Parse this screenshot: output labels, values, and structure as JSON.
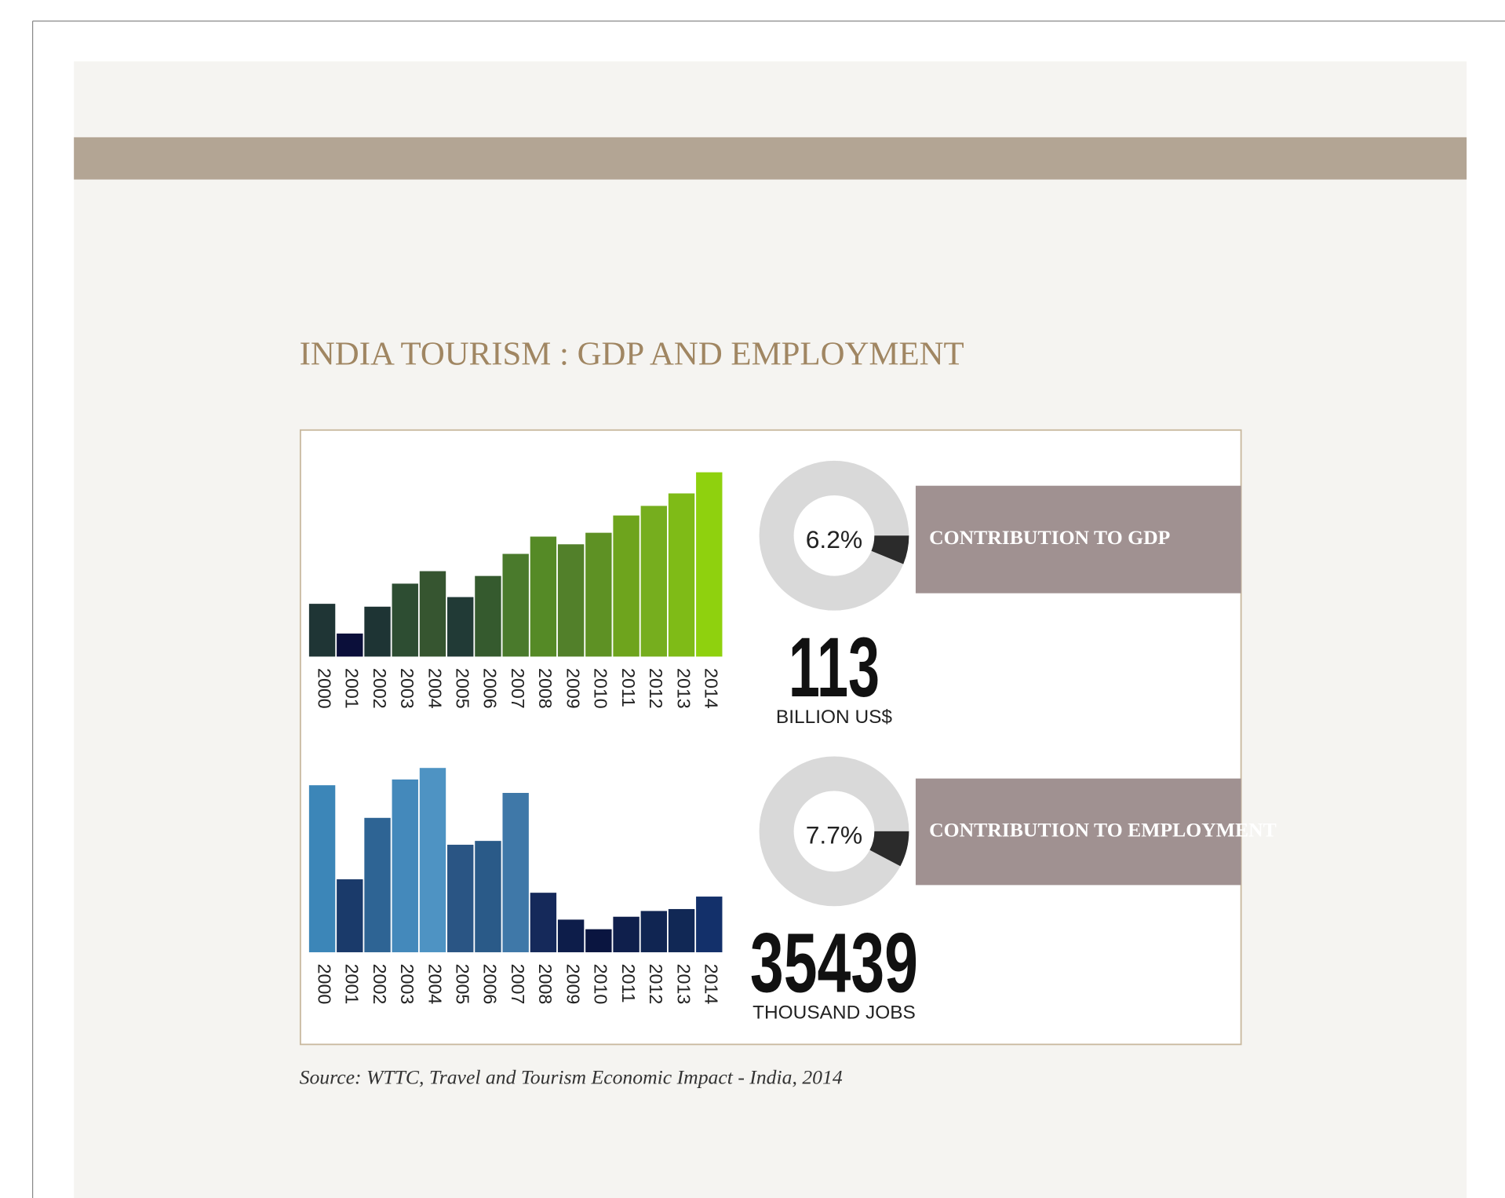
{
  "title": "INDIA TOURISM : GDP AND EMPLOYMENT",
  "source": "Source: WTTC, Travel and Tourism Economic Impact - India, 2014",
  "chart_data": [
    {
      "type": "bar",
      "categories": [
        "2000",
        "2001",
        "2002",
        "2003",
        "2004",
        "2005",
        "2006",
        "2007",
        "2008",
        "2009",
        "2010",
        "2011",
        "2012",
        "2013",
        "2014"
      ],
      "values": [
        55,
        24,
        52,
        76,
        89,
        62,
        84,
        107,
        125,
        117,
        129,
        147,
        157,
        170,
        192
      ],
      "colors": [
        "#1f3535",
        "#0b0f3a",
        "#1e3434",
        "#2d4d32",
        "#365530",
        "#213a36",
        "#355a2e",
        "#4a7a2c",
        "#558a26",
        "#52802a",
        "#5e9124",
        "#6ea41d",
        "#76ae1e",
        "#7fbb17",
        "#8fd10e"
      ],
      "ylim": [
        0,
        200
      ]
    },
    {
      "type": "donut",
      "values": [
        6.2
      ],
      "value_labels": [
        "6.2%"
      ],
      "label": "CONTRIBUTION TO GDP",
      "total": 113,
      "total_label": "BILLION US$",
      "color": "#2b2b2b",
      "ring_color": "#d9d9d9",
      "box_color": "#a09191"
    },
    {
      "type": "bar",
      "categories": [
        "2000",
        "2001",
        "2002",
        "2003",
        "2004",
        "2005",
        "2006",
        "2007",
        "2008",
        "2009",
        "2010",
        "2011",
        "2012",
        "2013",
        "2014"
      ],
      "values": [
        174,
        76,
        140,
        180,
        192,
        112,
        116,
        166,
        62,
        34,
        24,
        37,
        43,
        45,
        58
      ],
      "colors": [
        "#3c86b8",
        "#1a3a6a",
        "#2e6494",
        "#4489bb",
        "#4e93c3",
        "#2a5584",
        "#2a5a88",
        "#3f78a8",
        "#15295a",
        "#0d1d4a",
        "#0a1540",
        "#0f1f4c",
        "#102552",
        "#112855",
        "#13306a"
      ],
      "ylim": [
        0,
        200
      ]
    },
    {
      "type": "donut",
      "values": [
        7.7
      ],
      "value_labels": [
        "7.7%"
      ],
      "label": "CONTRIBUTION TO EMPLOYMENT",
      "total": 35439,
      "total_label": "THOUSAND JOBS",
      "color": "#2b2b2b",
      "ring_color": "#d9d9d9",
      "box_color": "#a09191"
    }
  ]
}
